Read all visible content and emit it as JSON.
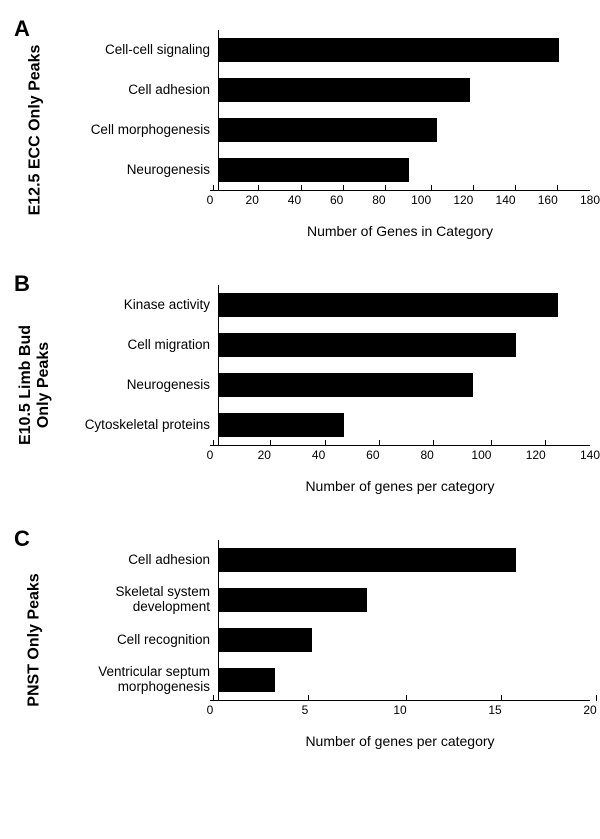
{
  "panels": [
    {
      "letter": "A",
      "ylabel": "E12.5 ECC Only Peaks",
      "xlabel": "Number of Genes in Category",
      "xmax": 180,
      "xtick_step": 20,
      "bar_color": "#000000",
      "background_color": "#ffffff",
      "label_fontsize": 14,
      "tick_fontsize": 12,
      "ylabel_fontsize": 16,
      "categories": [
        {
          "label": "Cell-cell signaling",
          "value": 165
        },
        {
          "label": "Cell adhesion",
          "value": 122
        },
        {
          "label": "Cell morphogenesis",
          "value": 106
        },
        {
          "label": "Neurogenesis",
          "value": 92
        }
      ]
    },
    {
      "letter": "B",
      "ylabel": "E10.5 Limb Bud\nOnly Peaks",
      "xlabel": "Number of genes per category",
      "xmax": 140,
      "xtick_step": 20,
      "bar_color": "#000000",
      "background_color": "#ffffff",
      "label_fontsize": 14,
      "tick_fontsize": 12,
      "ylabel_fontsize": 16,
      "categories": [
        {
          "label": "Kinase activity",
          "value": 128
        },
        {
          "label": "Cell migration",
          "value": 112
        },
        {
          "label": "Neurogenesis",
          "value": 96
        },
        {
          "label": "Cytoskeletal proteins",
          "value": 47
        }
      ]
    },
    {
      "letter": "C",
      "ylabel": "PNST Only Peaks",
      "xlabel": "Number of genes per category",
      "xmax": 20,
      "xtick_step": 5,
      "bar_color": "#000000",
      "background_color": "#ffffff",
      "label_fontsize": 14,
      "tick_fontsize": 12,
      "ylabel_fontsize": 16,
      "categories": [
        {
          "label": "Cell adhesion",
          "value": 16
        },
        {
          "label": "Skeletal system\ndevelopment",
          "value": 8
        },
        {
          "label": "Cell recognition",
          "value": 5
        },
        {
          "label": "Ventricular septum\nmorphogenesis",
          "value": 3
        }
      ]
    }
  ]
}
